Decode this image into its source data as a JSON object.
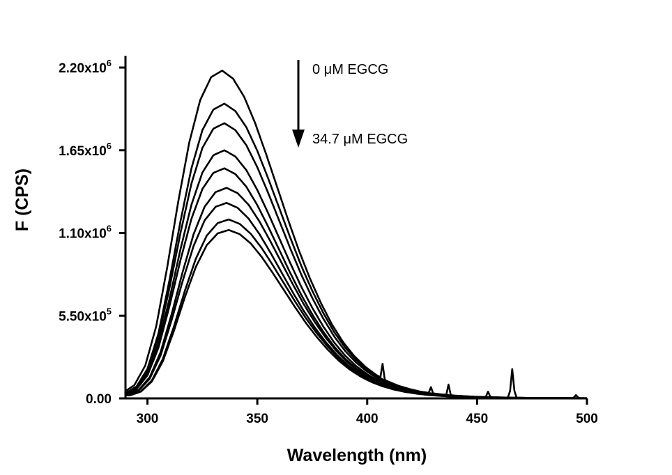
{
  "chart_data": {
    "type": "line",
    "xlabel": "Wavelength (nm)",
    "ylabel": "F (CPS)",
    "xlim": [
      290,
      500
    ],
    "ylim": [
      0,
      2200000
    ],
    "x_ticks": [
      300,
      350,
      400,
      450,
      500
    ],
    "y_ticks": [
      {
        "value": 0,
        "mantissa": "0.00",
        "exp": ""
      },
      {
        "value": 550000,
        "mantissa": "5.50x10",
        "exp": "5"
      },
      {
        "value": 1100000,
        "mantissa": "1.10x10",
        "exp": "6"
      },
      {
        "value": 1650000,
        "mantissa": "1.65x10",
        "exp": "6"
      },
      {
        "value": 2200000,
        "mantissa": "2.20x10",
        "exp": "6"
      }
    ],
    "grid": false,
    "line_color": "#000000",
    "annotations": {
      "top_label": "0 μM EGCG",
      "bottom_label": "34.7 μM EGCG",
      "arrow": "down"
    },
    "shape": {
      "wavelengths": [
        290,
        295,
        300,
        305,
        310,
        315,
        320,
        325,
        330,
        335,
        340,
        345,
        350,
        355,
        360,
        365,
        370,
        375,
        380,
        385,
        390,
        395,
        400,
        405,
        410,
        415,
        420,
        425,
        430,
        435,
        440,
        445,
        450,
        455,
        460,
        465,
        470,
        475,
        480,
        485,
        490,
        495,
        500
      ],
      "relative": [
        0.018,
        0.04,
        0.1,
        0.22,
        0.4,
        0.6,
        0.78,
        0.91,
        0.98,
        1.0,
        0.975,
        0.92,
        0.84,
        0.745,
        0.645,
        0.545,
        0.45,
        0.365,
        0.29,
        0.225,
        0.172,
        0.13,
        0.097,
        0.072,
        0.053,
        0.039,
        0.029,
        0.021,
        0.016,
        0.012,
        0.009,
        0.0068,
        0.0052,
        0.004,
        0.0031,
        0.0024,
        0.0019,
        0.0015,
        0.0012,
        0.001,
        0.0008,
        0.0007,
        0.0006
      ]
    },
    "series": [
      {
        "peak_x": 334,
        "peak_y": 2180000
      },
      {
        "peak_x": 335,
        "peak_y": 1960000
      },
      {
        "peak_x": 335,
        "peak_y": 1830000
      },
      {
        "peak_x": 335,
        "peak_y": 1650000
      },
      {
        "peak_x": 335,
        "peak_y": 1530000
      },
      {
        "peak_x": 336,
        "peak_y": 1400000
      },
      {
        "peak_x": 336,
        "peak_y": 1300000
      },
      {
        "peak_x": 337,
        "peak_y": 1190000
      },
      {
        "peak_x": 337,
        "peak_y": 1120000
      }
    ],
    "spikes": [
      {
        "x": 407,
        "y": 230000
      },
      {
        "x": 429,
        "y": 75000
      },
      {
        "x": 437,
        "y": 92000
      },
      {
        "x": 455,
        "y": 45000
      },
      {
        "x": 466,
        "y": 195000
      },
      {
        "x": 495,
        "y": 22000
      }
    ]
  }
}
